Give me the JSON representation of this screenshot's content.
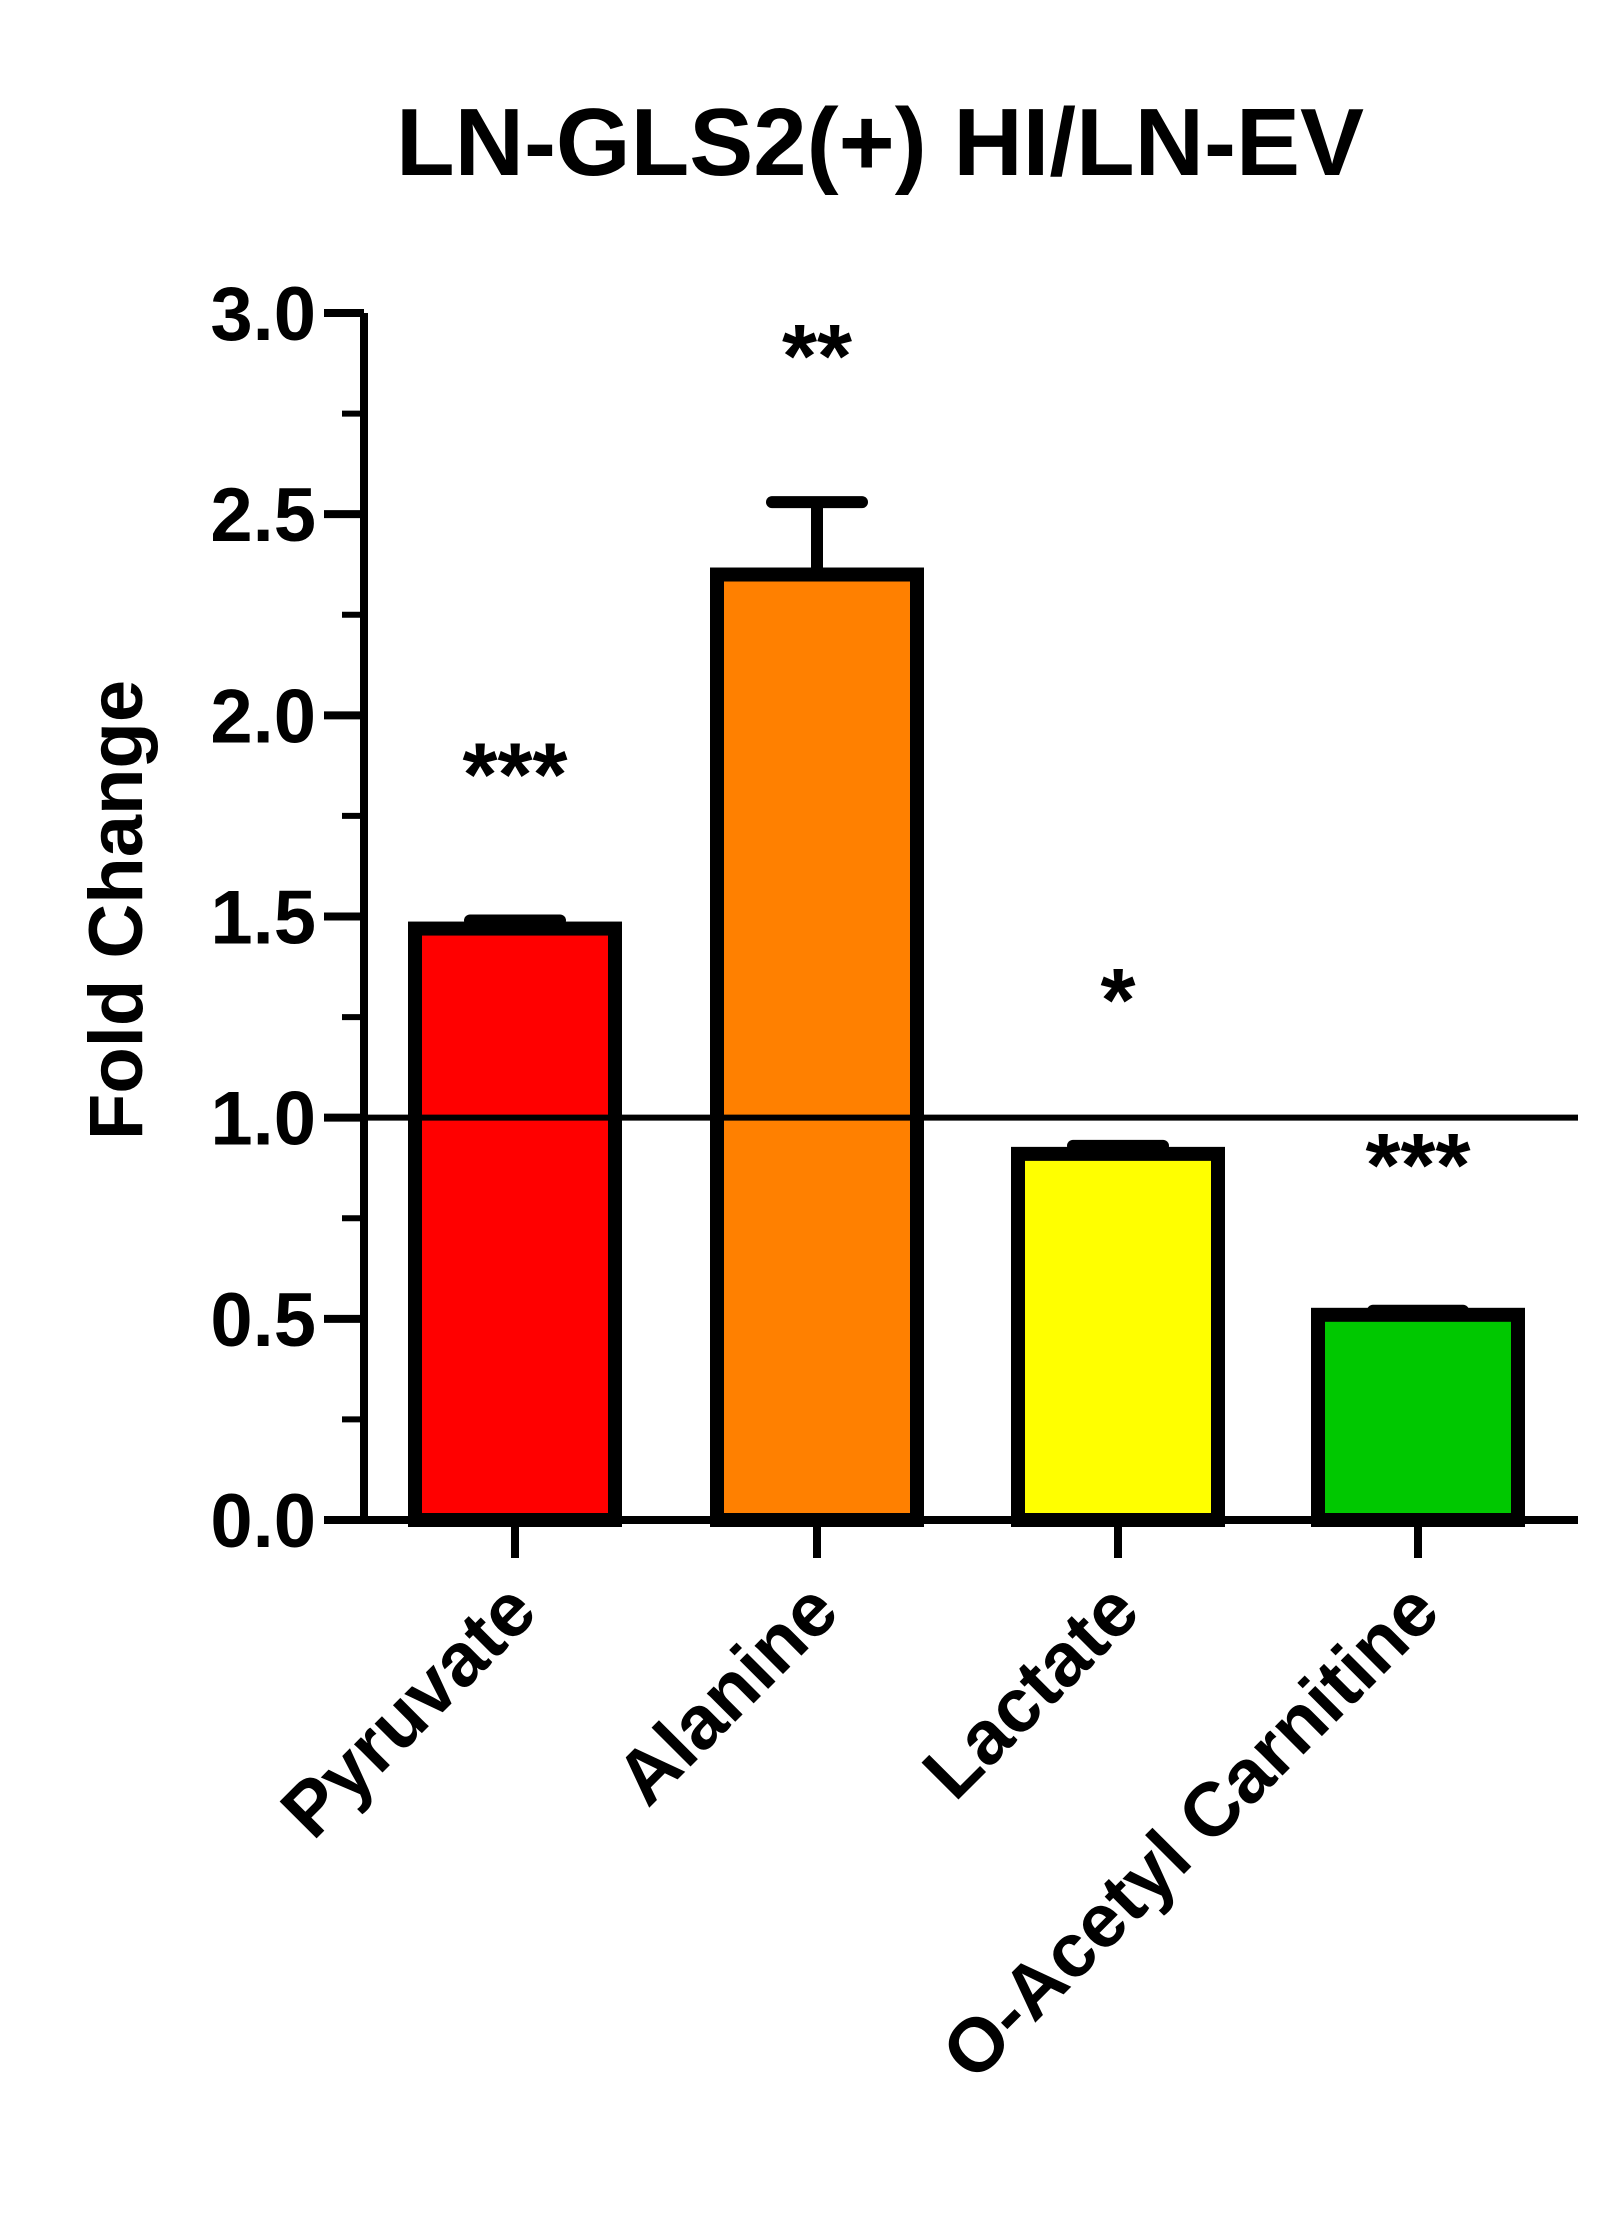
{
  "chart_data": {
    "type": "bar",
    "title": "LN-GLS2(+) HI/LN-EV",
    "xlabel": "",
    "ylabel": "Fold Change",
    "ylim": [
      0,
      3.0
    ],
    "yticks": [
      "0.0",
      "0.5",
      "1.0",
      "1.5",
      "2.0",
      "2.5",
      "3.0"
    ],
    "categories": [
      "Pyruvate",
      "Alanine",
      "Lactate",
      "O-Acetyl Carnitine"
    ],
    "values": [
      1.47,
      2.35,
      0.91,
      0.51
    ],
    "error": [
      0.02,
      0.18,
      0.02,
      0.01
    ],
    "significance": [
      "***",
      "**",
      "*",
      "***"
    ],
    "colors": [
      "#ff0000",
      "#ff8000",
      "#ffff00",
      "#00c800"
    ],
    "reference_line": 1.0,
    "grid": false,
    "legend": "none"
  }
}
